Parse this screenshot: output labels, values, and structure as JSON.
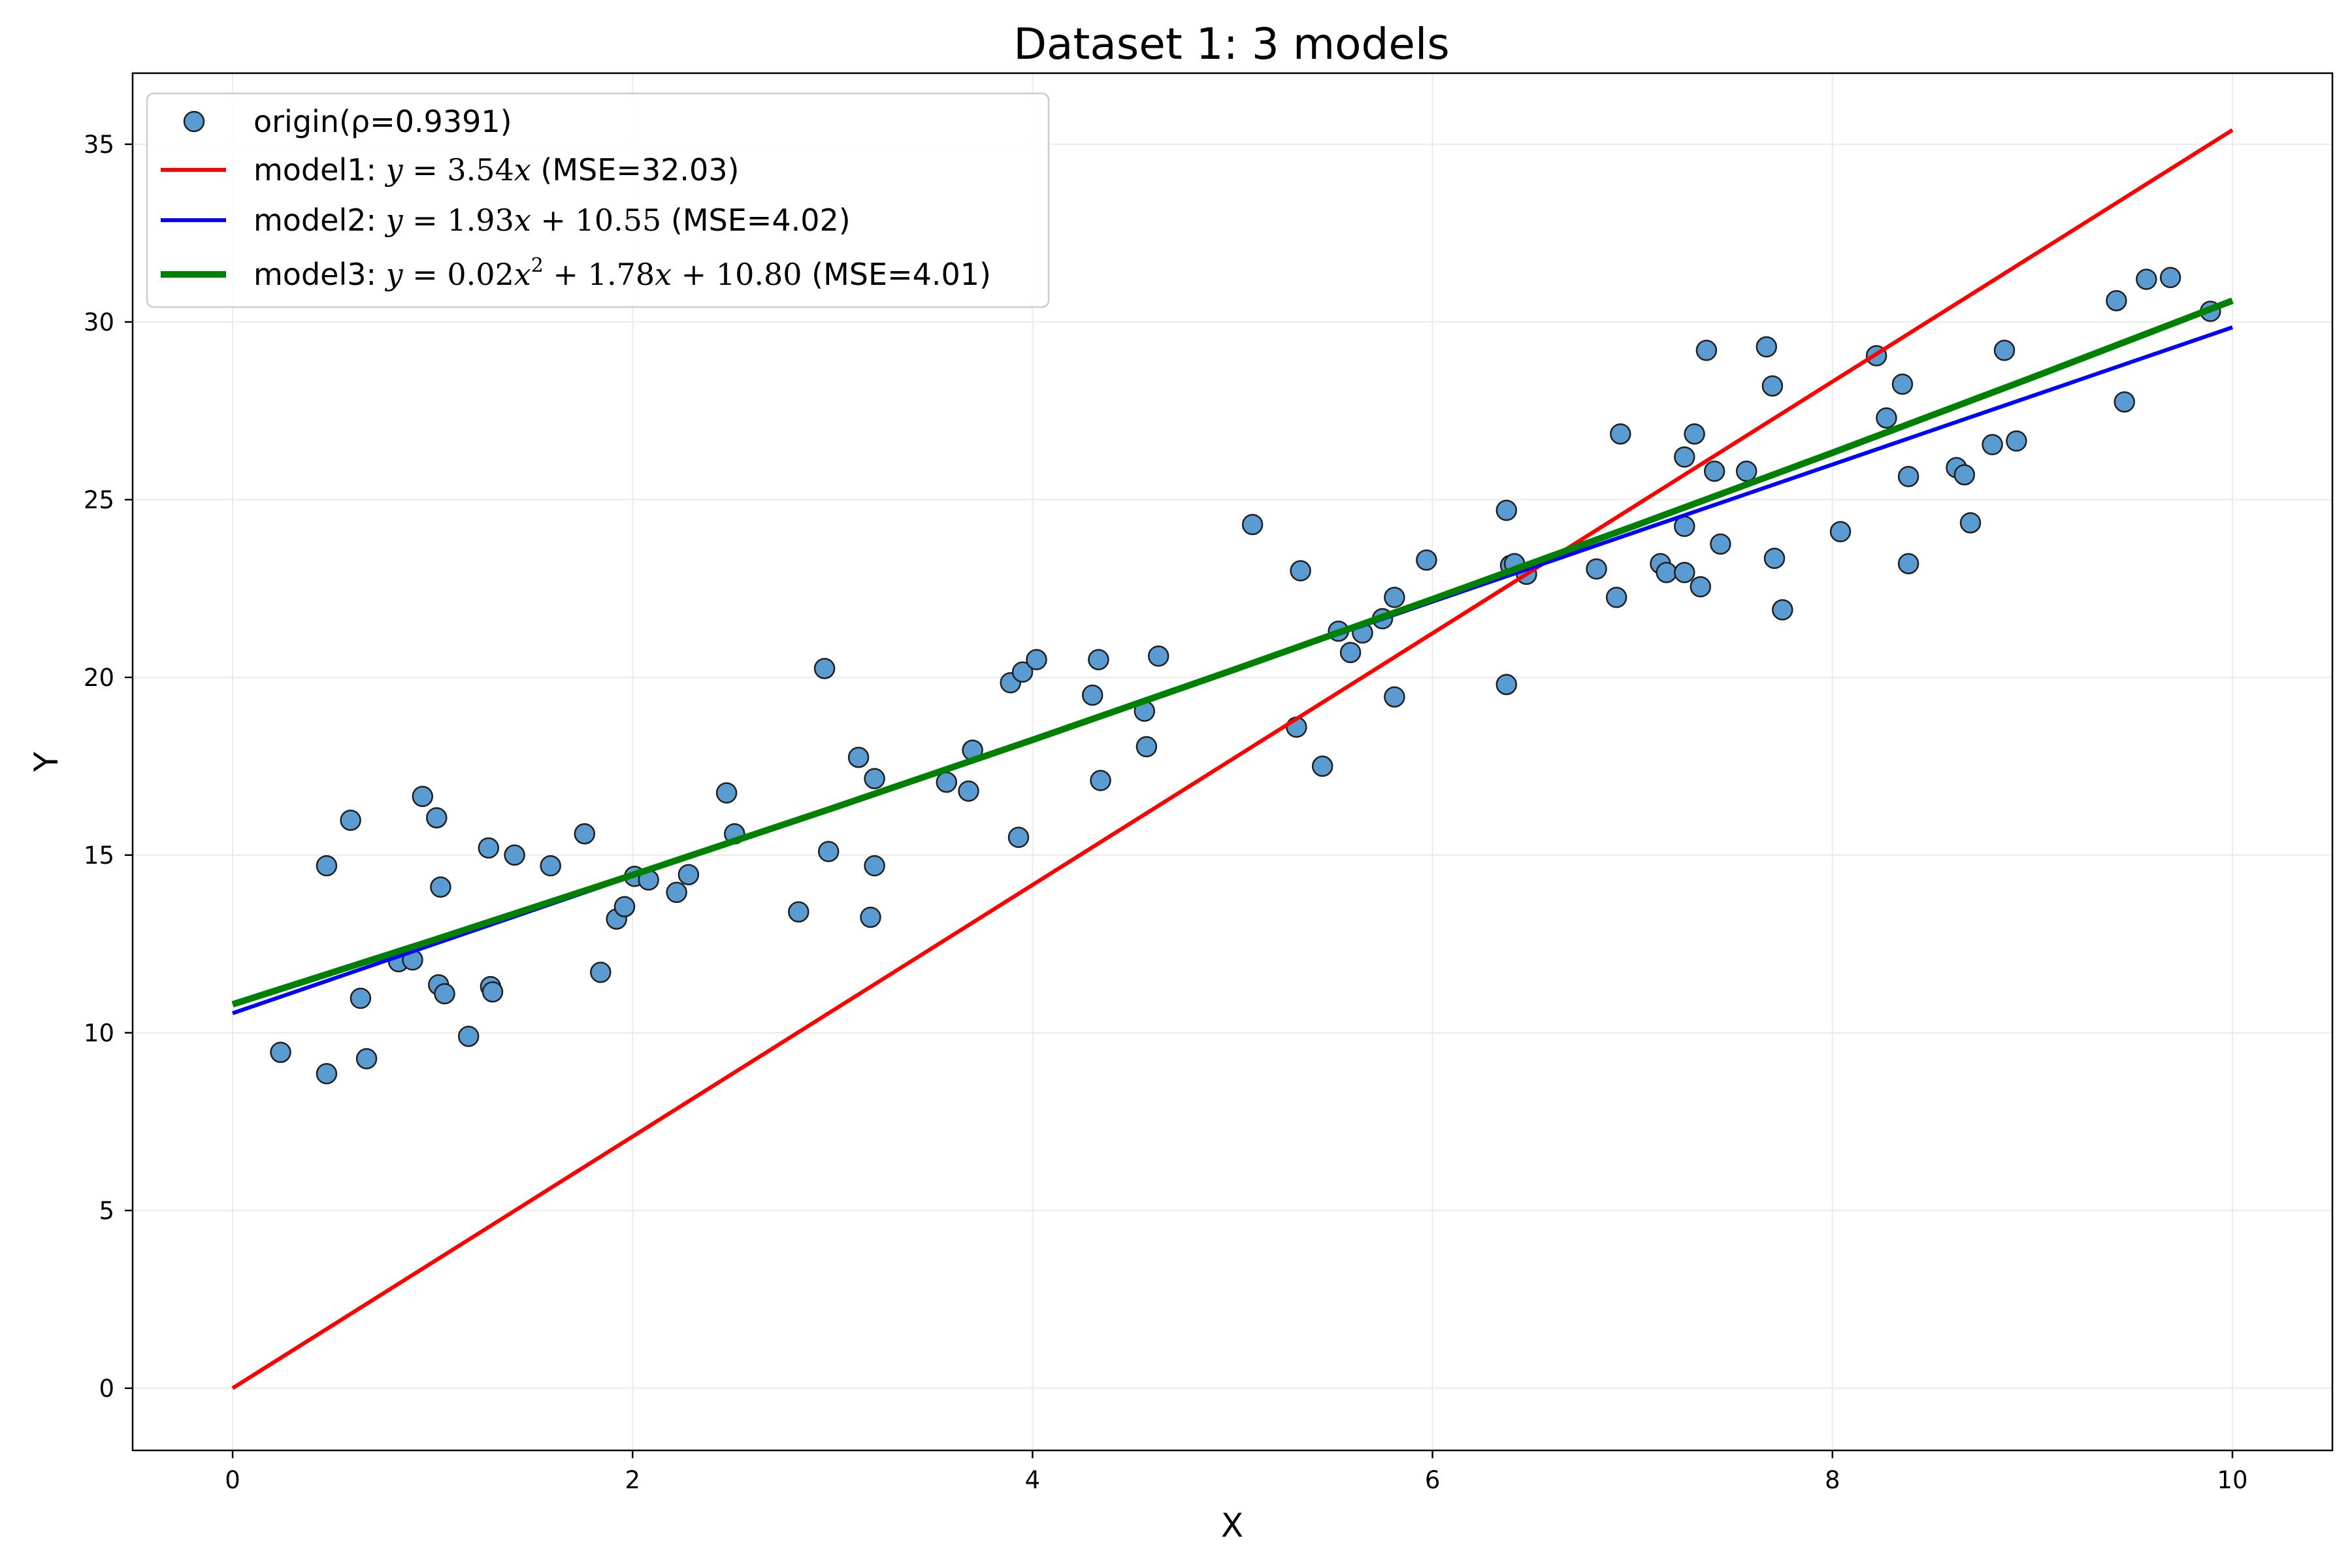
{
  "chart_data": {
    "type": "scatter",
    "title": "Dataset 1: 3 models",
    "xlabel": "X",
    "ylabel": "Y",
    "xlim": [
      -0.5,
      10.5
    ],
    "ylim": [
      -1.75,
      37.0
    ],
    "x_ticks": [
      0,
      2,
      4,
      6,
      8,
      10
    ],
    "y_ticks": [
      0,
      5,
      10,
      15,
      20,
      25,
      30,
      35
    ],
    "grid": true,
    "legend_position": "top-left",
    "colors": {
      "points": "#5a9bd1",
      "points_edge": "#1f1f1f",
      "model1": "#ff0000",
      "model2": "#0000ff",
      "model3": "#008000"
    },
    "legend": {
      "points": {
        "prefix": "origin(ρ=0.9391)"
      },
      "model1": {
        "prefix": "model1: ",
        "f1": "y",
        "f2": " = 3.54",
        "f3": "x",
        "suffix": " (MSE=32.03)"
      },
      "model2": {
        "prefix": "model2: ",
        "f1": "y",
        "f2": " = 1.93",
        "f3": "x",
        "f4": " + 10.55",
        "suffix": " (MSE=4.02)"
      },
      "model3": {
        "prefix": "model3: ",
        "f1": "y",
        "f2": " = 0.02",
        "f3": "x",
        "sup": "2",
        "f4": " + 1.78",
        "f5": "x",
        "f6": " + 10.80",
        "suffix": " (MSE=4.01)"
      }
    },
    "series": [
      {
        "name": "origin(ρ=0.9391)",
        "kind": "scatter",
        "points": [
          [
            0.24,
            9.45
          ],
          [
            0.47,
            8.85
          ],
          [
            0.47,
            14.7
          ],
          [
            0.59,
            15.98
          ],
          [
            0.64,
            10.97
          ],
          [
            0.67,
            9.27
          ],
          [
            0.83,
            12.0
          ],
          [
            0.9,
            12.05
          ],
          [
            0.95,
            16.65
          ],
          [
            1.02,
            16.05
          ],
          [
            1.03,
            11.35
          ],
          [
            1.04,
            14.1
          ],
          [
            1.06,
            11.1
          ],
          [
            1.18,
            9.9
          ],
          [
            1.28,
            15.2
          ],
          [
            1.29,
            11.3
          ],
          [
            1.3,
            11.15
          ],
          [
            1.41,
            15.0
          ],
          [
            1.59,
            14.7
          ],
          [
            1.76,
            15.6
          ],
          [
            1.84,
            11.7
          ],
          [
            1.92,
            13.2
          ],
          [
            1.96,
            13.55
          ],
          [
            2.01,
            14.4
          ],
          [
            2.08,
            14.3
          ],
          [
            2.22,
            13.95
          ],
          [
            2.28,
            14.45
          ],
          [
            2.47,
            16.75
          ],
          [
            2.51,
            15.6
          ],
          [
            2.83,
            13.4
          ],
          [
            2.96,
            20.25
          ],
          [
            2.98,
            15.1
          ],
          [
            3.13,
            17.75
          ],
          [
            3.19,
            13.25
          ],
          [
            3.21,
            14.7
          ],
          [
            3.21,
            17.15
          ],
          [
            3.57,
            17.05
          ],
          [
            3.68,
            16.8
          ],
          [
            3.7,
            17.95
          ],
          [
            3.89,
            19.85
          ],
          [
            3.93,
            15.5
          ],
          [
            3.95,
            20.15
          ],
          [
            4.02,
            20.5
          ],
          [
            4.3,
            19.5
          ],
          [
            4.33,
            20.5
          ],
          [
            4.34,
            17.1
          ],
          [
            4.56,
            19.05
          ],
          [
            4.57,
            18.05
          ],
          [
            4.63,
            20.6
          ],
          [
            5.1,
            24.3
          ],
          [
            5.32,
            18.6
          ],
          [
            5.34,
            23.0
          ],
          [
            5.45,
            17.5
          ],
          [
            5.53,
            21.3
          ],
          [
            5.59,
            20.7
          ],
          [
            5.65,
            21.25
          ],
          [
            5.75,
            21.65
          ],
          [
            5.81,
            22.25
          ],
          [
            5.81,
            19.45
          ],
          [
            5.97,
            23.3
          ],
          [
            6.37,
            24.7
          ],
          [
            6.37,
            19.8
          ],
          [
            6.39,
            23.15
          ],
          [
            6.41,
            23.2
          ],
          [
            6.47,
            22.9
          ],
          [
            6.82,
            23.05
          ],
          [
            6.92,
            22.25
          ],
          [
            6.94,
            26.85
          ],
          [
            7.14,
            23.2
          ],
          [
            7.17,
            22.95
          ],
          [
            7.26,
            22.95
          ],
          [
            7.26,
            24.25
          ],
          [
            7.26,
            26.2
          ],
          [
            7.31,
            26.85
          ],
          [
            7.34,
            22.55
          ],
          [
            7.37,
            29.2
          ],
          [
            7.41,
            25.8
          ],
          [
            7.44,
            23.75
          ],
          [
            7.57,
            25.8
          ],
          [
            7.67,
            29.3
          ],
          [
            7.7,
            28.2
          ],
          [
            7.71,
            23.35
          ],
          [
            7.75,
            21.9
          ],
          [
            8.04,
            24.1
          ],
          [
            8.22,
            29.05
          ],
          [
            8.27,
            27.3
          ],
          [
            8.35,
            28.25
          ],
          [
            8.38,
            25.65
          ],
          [
            8.38,
            23.2
          ],
          [
            8.62,
            25.9
          ],
          [
            8.66,
            25.7
          ],
          [
            8.69,
            24.35
          ],
          [
            8.8,
            26.55
          ],
          [
            8.86,
            29.2
          ],
          [
            8.92,
            26.65
          ],
          [
            9.42,
            30.6
          ],
          [
            9.46,
            27.75
          ],
          [
            9.57,
            31.2
          ],
          [
            9.69,
            31.25
          ],
          [
            9.89,
            30.3
          ]
        ]
      },
      {
        "name": "model1",
        "kind": "line",
        "x": [
          0,
          10
        ],
        "y": [
          0,
          35.4
        ]
      },
      {
        "name": "model2",
        "kind": "line",
        "x": [
          0,
          10
        ],
        "y": [
          10.55,
          29.85
        ]
      },
      {
        "name": "model3",
        "kind": "line",
        "x": [
          0,
          1,
          2,
          3,
          4,
          5,
          6,
          7,
          8,
          9,
          10
        ],
        "y": [
          10.8,
          12.6,
          14.44,
          16.32,
          18.24,
          20.2,
          22.2,
          24.24,
          26.32,
          28.44,
          30.6
        ]
      }
    ]
  }
}
